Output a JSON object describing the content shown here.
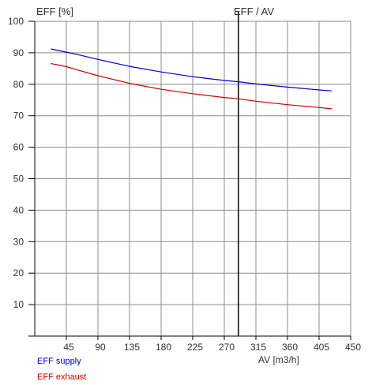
{
  "chart_data": {
    "type": "line",
    "title": "EFF / AV",
    "ylabel": "EFF [%]",
    "xlabel": "AV [m3/h]",
    "xlim": [
      0,
      450
    ],
    "ylim": [
      0,
      100
    ],
    "xticks": [
      45,
      90,
      135,
      180,
      225,
      270,
      315,
      360,
      405,
      450
    ],
    "yticks": [
      10,
      20,
      30,
      40,
      50,
      60,
      70,
      80,
      90,
      100
    ],
    "grid": true,
    "marker_x": 290,
    "legend_position": "bottom-left",
    "series": [
      {
        "name": "EFF supply",
        "color": "#0000cc",
        "x": [
          23,
          45,
          60,
          90,
          135,
          180,
          225,
          270,
          290,
          315,
          360,
          405,
          423
        ],
        "y": [
          91.2,
          90.2,
          89.5,
          87.9,
          85.7,
          83.9,
          82.4,
          81.2,
          80.8,
          80.1,
          79.1,
          78.2,
          77.9
        ]
      },
      {
        "name": "EFF exhaust",
        "color": "#cc0000",
        "x": [
          23,
          45,
          60,
          90,
          135,
          180,
          225,
          270,
          290,
          315,
          360,
          405,
          423
        ],
        "y": [
          86.6,
          85.6,
          84.6,
          82.7,
          80.3,
          78.4,
          77,
          75.8,
          75.4,
          74.6,
          73.5,
          72.6,
          72.2
        ]
      }
    ]
  }
}
